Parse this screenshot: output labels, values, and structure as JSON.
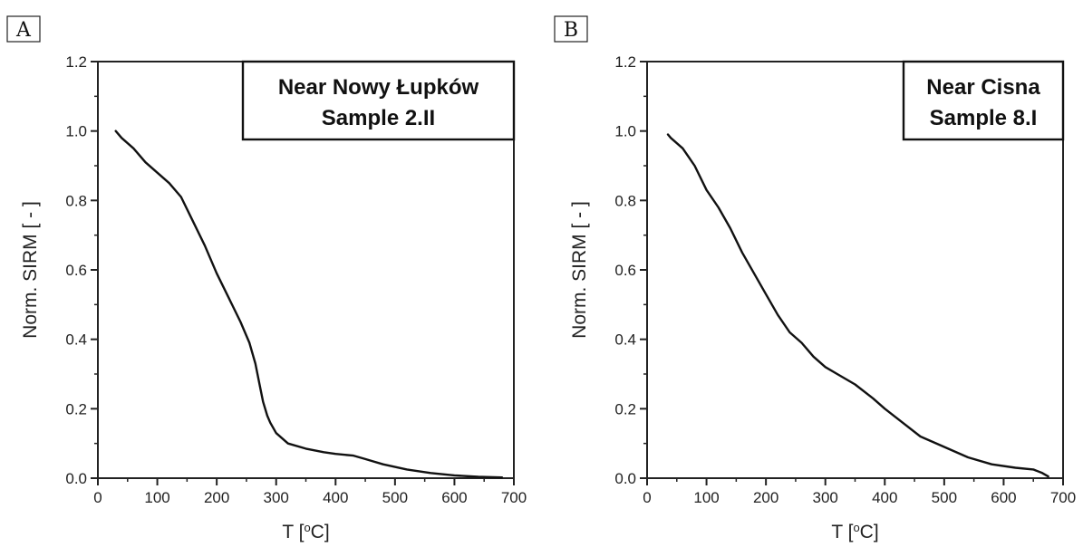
{
  "chart_data": [
    {
      "panel_label": "A",
      "type": "line",
      "title_lines": [
        "Near Nowy Łupków",
        "Sample 2.II"
      ],
      "xlabel_main": "T [",
      "xlabel_sup": "o",
      "xlabel_tail": "C]",
      "ylabel": "Norm. SIRM [ - ]",
      "xlim": [
        0,
        700
      ],
      "ylim": [
        0,
        1.2
      ],
      "xticks": [
        "0",
        "100",
        "200",
        "300",
        "400",
        "500",
        "600",
        "700"
      ],
      "yticks": [
        "0.0",
        "0.2",
        "0.4",
        "0.6",
        "0.8",
        "1.0",
        "1.2"
      ],
      "grid": false,
      "legend_position": "top-right",
      "series": [
        {
          "x": [
            30,
            40,
            60,
            80,
            100,
            120,
            140,
            160,
            180,
            200,
            220,
            240,
            255,
            265,
            272,
            278,
            285,
            290,
            300,
            320,
            350,
            380,
            400,
            430,
            450,
            480,
            520,
            560,
            600,
            640,
            680
          ],
          "y": [
            1.0,
            0.98,
            0.95,
            0.91,
            0.88,
            0.85,
            0.81,
            0.74,
            0.67,
            0.59,
            0.52,
            0.45,
            0.39,
            0.33,
            0.27,
            0.22,
            0.18,
            0.16,
            0.13,
            0.1,
            0.085,
            0.075,
            0.07,
            0.065,
            0.055,
            0.04,
            0.025,
            0.015,
            0.008,
            0.004,
            0.002
          ]
        }
      ]
    },
    {
      "panel_label": "B",
      "type": "line",
      "title_lines": [
        "Near Cisna",
        "Sample 8.I"
      ],
      "xlabel_main": "T [",
      "xlabel_sup": "o",
      "xlabel_tail": "C]",
      "ylabel": "Norm. SIRM [ - ]",
      "xlim": [
        0,
        700
      ],
      "ylim": [
        0,
        1.2
      ],
      "xticks": [
        "0",
        "100",
        "200",
        "300",
        "400",
        "500",
        "600",
        "700"
      ],
      "yticks": [
        "0.0",
        "0.2",
        "0.4",
        "0.6",
        "0.8",
        "1.0",
        "1.2"
      ],
      "grid": false,
      "legend_position": "top-right",
      "series": [
        {
          "x": [
            35,
            40,
            60,
            80,
            100,
            120,
            140,
            160,
            180,
            200,
            220,
            240,
            260,
            280,
            300,
            320,
            350,
            380,
            400,
            430,
            460,
            500,
            540,
            580,
            620,
            650,
            665,
            675
          ],
          "y": [
            0.99,
            0.98,
            0.95,
            0.9,
            0.83,
            0.78,
            0.72,
            0.65,
            0.59,
            0.53,
            0.47,
            0.42,
            0.39,
            0.35,
            0.32,
            0.3,
            0.27,
            0.23,
            0.2,
            0.16,
            0.12,
            0.09,
            0.06,
            0.04,
            0.03,
            0.025,
            0.015,
            0.005
          ]
        }
      ]
    }
  ]
}
